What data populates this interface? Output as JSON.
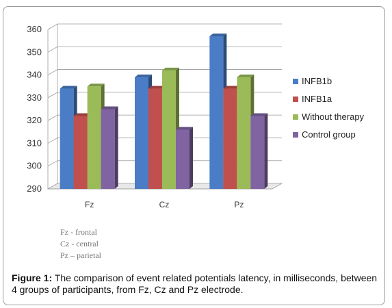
{
  "chart_data": {
    "type": "bar",
    "style": "3d-clustered-column",
    "title": "",
    "xlabel": "",
    "ylabel": "",
    "ylim": [
      290,
      360
    ],
    "yticks": [
      290,
      300,
      310,
      320,
      330,
      340,
      350,
      360
    ],
    "categories": [
      "Fz",
      "Cz",
      "Pz"
    ],
    "series": [
      {
        "name": "INFB1b",
        "color": "#4a7dc6",
        "values": [
          334,
          339,
          357
        ]
      },
      {
        "name": "INFB1a",
        "color": "#c0504d",
        "values": [
          322,
          334,
          334
        ]
      },
      {
        "name": "Without therapy",
        "color": "#9bbb59",
        "values": [
          335,
          342,
          339
        ]
      },
      {
        "name": "Control group",
        "color": "#8064a2",
        "values": [
          325,
          316,
          322
        ]
      }
    ],
    "grid": true,
    "legend_position": "right"
  },
  "notes": [
    "Fz - frontal",
    "Cz - central",
    "Pz – parietal"
  ],
  "caption": {
    "label": "Figure 1:",
    "text": " The comparison of event related potentials latency, in milliseconds, between 4 groups of participants, from Fz, Cz and Pz electrode."
  }
}
